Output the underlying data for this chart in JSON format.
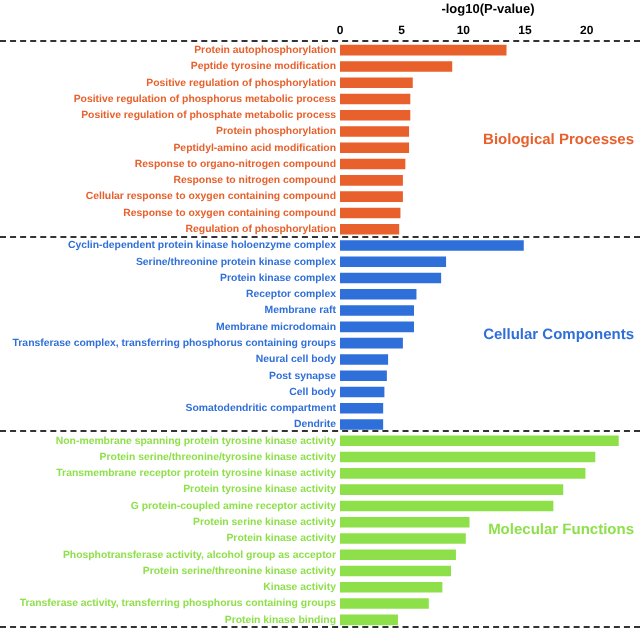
{
  "chart_data": {
    "type": "bar",
    "orientation": "horizontal",
    "stacked": true,
    "xlabel": "-log10(P-value)",
    "categories": [
      "Protein autophosphorylation",
      "Peptide tyrosine modification",
      "Positive regulation of phosphorylation",
      "Positive regulation of phosphorus metabolic process",
      "Positive regulation of phosphate metabolic process",
      "Protein phosphorylation",
      "Peptidyl-amino acid modification",
      "Response to organo-nitrogen compound",
      "Response to nitrogen compound",
      "Cellular response to oxygen containing compound",
      "Response to oxygen containing compound",
      "Regulation of phosphorylation",
      "Cyclin-dependent protein kinase holoenzyme complex",
      "Serine/threonine protein kinase complex",
      "Protein kinase complex",
      "Receptor complex",
      "Membrane raft",
      "Membrane microdomain",
      "Transferase complex, transferring phosphorus containing groups",
      "Neural cell body",
      "Post synapse",
      "Cell body",
      "Somatodendritic compartment",
      "Dendrite",
      "Non-membrane spanning protein tyrosine kinase activity",
      "Protein serine/threonine/tyrosine kinase activity",
      "Transmembrane receptor protein tyrosine kinase activity",
      "Protein tyrosine kinase activity",
      "G protein-coupled amine receptor activity",
      "Protein serine kinase activity",
      "Protein kinase activity",
      "Phosphotransferase activity, alcohol group as acceptor",
      "Protein serine/threonine kinase activity",
      "Kinase activity",
      "Transferase activity, transferring phosphorus containing groups",
      "Protein kinase binding"
    ],
    "series": [
      {
        "name": "Biological Processes",
        "color": "#e8602c",
        "values": [
          13.5,
          9.1,
          5.9,
          5.7,
          5.7,
          5.6,
          5.6,
          5.3,
          5.1,
          5.1,
          4.9,
          4.8,
          null,
          null,
          null,
          null,
          null,
          null,
          null,
          null,
          null,
          null,
          null,
          null,
          null,
          null,
          null,
          null,
          null,
          null,
          null,
          null,
          null,
          null,
          null,
          null
        ]
      },
      {
        "name": "Cellular Components",
        "color": "#2f6fd9",
        "values": [
          null,
          null,
          null,
          null,
          null,
          null,
          null,
          null,
          null,
          null,
          null,
          null,
          14.9,
          8.6,
          8.2,
          6.2,
          6.0,
          6.0,
          5.1,
          3.9,
          3.8,
          3.6,
          3.5,
          3.5,
          null,
          null,
          null,
          null,
          null,
          null,
          null,
          null,
          null,
          null,
          null,
          null
        ]
      },
      {
        "name": "Molecular Functions",
        "color": "#8ee04a",
        "values": [
          null,
          null,
          null,
          null,
          null,
          null,
          null,
          null,
          null,
          null,
          null,
          null,
          null,
          null,
          null,
          null,
          null,
          null,
          null,
          null,
          null,
          null,
          null,
          null,
          22.6,
          20.7,
          19.9,
          18.1,
          17.3,
          10.5,
          10.2,
          9.4,
          9.0,
          8.3,
          7.2,
          4.7
        ]
      }
    ],
    "xlim": [
      0,
      24
    ],
    "xticks": [
      0,
      5,
      10,
      15,
      20
    ],
    "grid": false,
    "legend": false
  }
}
